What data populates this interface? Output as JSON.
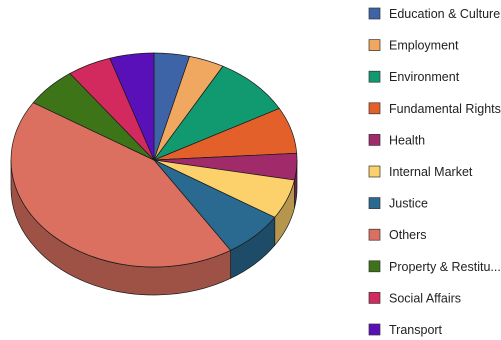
{
  "chart_data": {
    "type": "pie",
    "style": "3d",
    "title": "",
    "legend_position": "right",
    "start_angle_deg": -90,
    "slices": [
      {
        "label": "Education & Culture",
        "value": 4,
        "color": "#3e64a8"
      },
      {
        "label": "Employment",
        "value": 4,
        "color": "#f0a860"
      },
      {
        "label": "Environment",
        "value": 9,
        "color": "#119a70"
      },
      {
        "label": "Fundamental Rights",
        "value": 7,
        "color": "#e4602a"
      },
      {
        "label": "Health",
        "value": 4,
        "color": "#a02a6a"
      },
      {
        "label": "Internal Market",
        "value": 6,
        "color": "#fcd06a"
      },
      {
        "label": "Justice",
        "value": 7,
        "color": "#2a6a90"
      },
      {
        "label": "Others",
        "value": 43,
        "color": "#dc7060"
      },
      {
        "label": "Property & Restitu...",
        "value": 6,
        "color": "#3e7418"
      },
      {
        "label": "Social Affairs",
        "value": 5,
        "color": "#d22a5e"
      },
      {
        "label": "Transport",
        "value": 5,
        "color": "#5a10b8"
      }
    ]
  }
}
